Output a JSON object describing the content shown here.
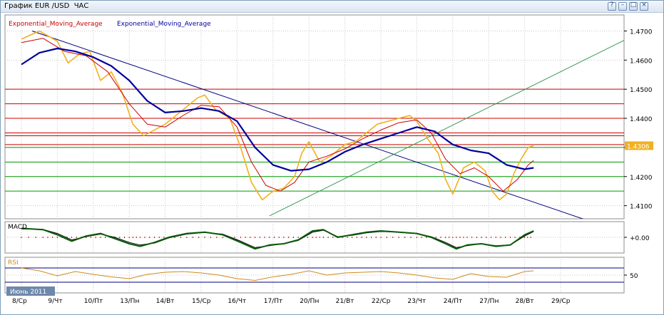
{
  "window": {
    "title": "График EUR /USD  ЧАС",
    "buttons": [
      {
        "name": "pin",
        "glyph": "?"
      },
      {
        "name": "minimize",
        "glyph": "–"
      },
      {
        "name": "maximize",
        "glyph": "□"
      },
      {
        "name": "close",
        "glyph": "×"
      }
    ]
  },
  "legend": {
    "ema_red_label": "Exponential_Moving_Average",
    "ema_blue_label": "Exponential_Moving_Average"
  },
  "month_label": "Июнь 2011",
  "colors": {
    "price": "#f0b020",
    "ema_fast": "#cc0000",
    "ema_slow": "#0000a0",
    "resistance": "#cc0000",
    "support": "#009900",
    "trend_down": "#000080",
    "trend_up": "#3c9a5a",
    "macd_main": "#0a5a0a",
    "macd_signal": "#000000",
    "rsi": "#d08a20",
    "price_tag_bg": "#f0b020"
  },
  "chart_data": [
    {
      "type": "line",
      "panel": "price",
      "x_labels": [
        "8/Ср",
        "9/Чт",
        "10/Пт",
        "13/Пн",
        "14/Вт",
        "15/Ср",
        "16/Чт",
        "17/Пт",
        "20/Пн",
        "21/Вт",
        "22/Ср",
        "23/Чт",
        "24/Пт",
        "27/Пн",
        "28/Вт",
        "29/Ср"
      ],
      "y_ticks": [
        1.41,
        1.42,
        1.43,
        1.44,
        1.45,
        1.46,
        1.47
      ],
      "y_tick_labels": [
        "1.4100",
        "1.4200",
        "",
        "1.4400",
        "1.4500",
        "1.4600",
        "1.4700"
      ],
      "ylim": [
        1.4055,
        1.4755
      ],
      "last_price_label": "1.4306",
      "last_price": 1.4306,
      "series": [
        {
          "name": "price",
          "points": [
            [
              0,
              1.4672
            ],
            [
              0.5,
              1.47
            ],
            [
              1,
              1.4665
            ],
            [
              1.3,
              1.459
            ],
            [
              1.6,
              1.462
            ],
            [
              1.9,
              1.463
            ],
            [
              2.2,
              1.453
            ],
            [
              2.5,
              1.456
            ],
            [
              2.8,
              1.449
            ],
            [
              3.1,
              1.438
            ],
            [
              3.4,
              1.434
            ],
            [
              3.7,
              1.436
            ],
            [
              4.0,
              1.438
            ],
            [
              4.3,
              1.441
            ],
            [
              4.6,
              1.444
            ],
            [
              4.9,
              1.447
            ],
            [
              5.1,
              1.448
            ],
            [
              5.4,
              1.443
            ],
            [
              5.8,
              1.44
            ],
            [
              6.1,
              1.43
            ],
            [
              6.4,
              1.418
            ],
            [
              6.7,
              1.412
            ],
            [
              7.0,
              1.415
            ],
            [
              7.3,
              1.416
            ],
            [
              7.6,
              1.42
            ],
            [
              7.8,
              1.428
            ],
            [
              8.0,
              1.432
            ],
            [
              8.3,
              1.425
            ],
            [
              8.6,
              1.427
            ],
            [
              9.0,
              1.431
            ],
            [
              9.3,
              1.432
            ],
            [
              9.6,
              1.435
            ],
            [
              9.9,
              1.438
            ],
            [
              10.2,
              1.439
            ],
            [
              10.5,
              1.44
            ],
            [
              10.8,
              1.441
            ],
            [
              11.0,
              1.439
            ],
            [
              11.3,
              1.433
            ],
            [
              11.6,
              1.428
            ],
            [
              11.8,
              1.419
            ],
            [
              12.0,
              1.414
            ],
            [
              12.3,
              1.423
            ],
            [
              12.6,
              1.425
            ],
            [
              12.9,
              1.422
            ],
            [
              13.1,
              1.415
            ],
            [
              13.3,
              1.412
            ],
            [
              13.5,
              1.414
            ],
            [
              13.7,
              1.421
            ],
            [
              13.9,
              1.426
            ],
            [
              14.1,
              1.43
            ],
            [
              14.25,
              1.4306
            ]
          ]
        },
        {
          "name": "ema_fast",
          "points": [
            [
              0,
              1.466
            ],
            [
              0.6,
              1.4675
            ],
            [
              1.2,
              1.463
            ],
            [
              1.8,
              1.4615
            ],
            [
              2.4,
              1.456
            ],
            [
              3.0,
              1.445
            ],
            [
              3.5,
              1.438
            ],
            [
              4.0,
              1.437
            ],
            [
              4.5,
              1.441
            ],
            [
              5.0,
              1.4445
            ],
            [
              5.5,
              1.444
            ],
            [
              6.0,
              1.437
            ],
            [
              6.4,
              1.425
            ],
            [
              6.8,
              1.417
            ],
            [
              7.2,
              1.415
            ],
            [
              7.6,
              1.418
            ],
            [
              8.0,
              1.425
            ],
            [
              8.5,
              1.427
            ],
            [
              9.0,
              1.4295
            ],
            [
              9.5,
              1.433
            ],
            [
              10.0,
              1.436
            ],
            [
              10.5,
              1.4385
            ],
            [
              11.0,
              1.4395
            ],
            [
              11.4,
              1.435
            ],
            [
              11.8,
              1.426
            ],
            [
              12.2,
              1.421
            ],
            [
              12.6,
              1.423
            ],
            [
              13.0,
              1.42
            ],
            [
              13.4,
              1.415
            ],
            [
              13.8,
              1.419
            ],
            [
              14.1,
              1.424
            ],
            [
              14.25,
              1.4255
            ]
          ]
        },
        {
          "name": "ema_slow",
          "points": [
            [
              0,
              1.4585
            ],
            [
              0.5,
              1.4625
            ],
            [
              1.0,
              1.464
            ],
            [
              1.5,
              1.463
            ],
            [
              2.0,
              1.461
            ],
            [
              2.5,
              1.458
            ],
            [
              3.0,
              1.453
            ],
            [
              3.5,
              1.446
            ],
            [
              4.0,
              1.442
            ],
            [
              4.5,
              1.4425
            ],
            [
              5.0,
              1.4435
            ],
            [
              5.5,
              1.4425
            ],
            [
              6.0,
              1.439
            ],
            [
              6.5,
              1.43
            ],
            [
              7.0,
              1.424
            ],
            [
              7.5,
              1.422
            ],
            [
              8.0,
              1.4225
            ],
            [
              8.5,
              1.425
            ],
            [
              9.0,
              1.4285
            ],
            [
              9.5,
              1.431
            ],
            [
              10.0,
              1.433
            ],
            [
              10.5,
              1.435
            ],
            [
              11.0,
              1.437
            ],
            [
              11.5,
              1.4355
            ],
            [
              12.0,
              1.431
            ],
            [
              12.5,
              1.429
            ],
            [
              13.0,
              1.428
            ],
            [
              13.5,
              1.424
            ],
            [
              14.0,
              1.4225
            ],
            [
              14.25,
              1.423
            ]
          ]
        }
      ],
      "resistance_levels": [
        1.45,
        1.445,
        1.44,
        1.435,
        1.434,
        1.431
      ],
      "support_levels": [
        1.43,
        1.425,
        1.42,
        1.415
      ],
      "trendlines": [
        {
          "name": "down",
          "from": [
            0.3,
            1.47
          ],
          "to": [
            16.8,
            1.4005
          ]
        },
        {
          "name": "up",
          "from": [
            6.9,
            1.4065
          ],
          "to": [
            16.8,
            1.467
          ]
        }
      ]
    },
    {
      "type": "line",
      "panel": "macd",
      "label": "MACD",
      "y_tick_labels": [
        "+0.00"
      ],
      "ylim": [
        -1,
        1
      ],
      "series": [
        {
          "name": "macd",
          "points": [
            [
              0,
              0.7
            ],
            [
              0.6,
              0.6
            ],
            [
              1.0,
              0.2
            ],
            [
              1.4,
              -0.3
            ],
            [
              1.8,
              0.1
            ],
            [
              2.2,
              0.3
            ],
            [
              2.6,
              -0.1
            ],
            [
              3.0,
              -0.5
            ],
            [
              3.3,
              -0.7
            ],
            [
              3.7,
              -0.4
            ],
            [
              4.1,
              0.0
            ],
            [
              4.6,
              0.3
            ],
            [
              5.1,
              0.4
            ],
            [
              5.6,
              0.2
            ],
            [
              6.1,
              -0.4
            ],
            [
              6.5,
              -0.9
            ],
            [
              6.9,
              -0.6
            ],
            [
              7.3,
              -0.5
            ],
            [
              7.7,
              -0.2
            ],
            [
              8.1,
              0.5
            ],
            [
              8.4,
              0.6
            ],
            [
              8.8,
              0.0
            ],
            [
              9.2,
              0.2
            ],
            [
              9.6,
              0.4
            ],
            [
              10.0,
              0.5
            ],
            [
              10.5,
              0.4
            ],
            [
              11.0,
              0.3
            ],
            [
              11.4,
              0.0
            ],
            [
              11.8,
              -0.5
            ],
            [
              12.1,
              -0.9
            ],
            [
              12.4,
              -0.6
            ],
            [
              12.8,
              -0.5
            ],
            [
              13.2,
              -0.7
            ],
            [
              13.6,
              -0.6
            ],
            [
              14.0,
              0.2
            ],
            [
              14.25,
              0.5
            ]
          ]
        },
        {
          "name": "signal",
          "points": [
            [
              0,
              0.65
            ],
            [
              0.6,
              0.62
            ],
            [
              1.0,
              0.3
            ],
            [
              1.4,
              -0.2
            ],
            [
              1.8,
              0.05
            ],
            [
              2.2,
              0.25
            ],
            [
              2.6,
              0.0
            ],
            [
              3.0,
              -0.4
            ],
            [
              3.3,
              -0.6
            ],
            [
              3.7,
              -0.45
            ],
            [
              4.1,
              -0.05
            ],
            [
              4.6,
              0.25
            ],
            [
              5.1,
              0.38
            ],
            [
              5.6,
              0.25
            ],
            [
              6.1,
              -0.3
            ],
            [
              6.5,
              -0.8
            ],
            [
              6.9,
              -0.65
            ],
            [
              7.3,
              -0.5
            ],
            [
              7.7,
              -0.25
            ],
            [
              8.1,
              0.4
            ],
            [
              8.4,
              0.55
            ],
            [
              8.8,
              0.05
            ],
            [
              9.2,
              0.15
            ],
            [
              9.6,
              0.35
            ],
            [
              10.0,
              0.45
            ],
            [
              10.5,
              0.4
            ],
            [
              11.0,
              0.3
            ],
            [
              11.4,
              0.05
            ],
            [
              11.8,
              -0.4
            ],
            [
              12.1,
              -0.8
            ],
            [
              12.4,
              -0.65
            ],
            [
              12.8,
              -0.5
            ],
            [
              13.2,
              -0.65
            ],
            [
              13.6,
              -0.6
            ],
            [
              14.0,
              0.1
            ],
            [
              14.25,
              0.45
            ]
          ]
        }
      ]
    },
    {
      "type": "line",
      "panel": "rsi",
      "label": "RSI",
      "y_tick_labels": [
        "50"
      ],
      "ylim": [
        0,
        100
      ],
      "series": [
        {
          "name": "rsi",
          "points": [
            [
              0,
              70
            ],
            [
              0.5,
              62
            ],
            [
              1.0,
              48
            ],
            [
              1.5,
              60
            ],
            [
              2.0,
              52
            ],
            [
              2.5,
              45
            ],
            [
              3.0,
              40
            ],
            [
              3.5,
              52
            ],
            [
              4.0,
              58
            ],
            [
              4.5,
              60
            ],
            [
              5.0,
              56
            ],
            [
              5.5,
              50
            ],
            [
              6.0,
              40
            ],
            [
              6.5,
              35
            ],
            [
              7.0,
              45
            ],
            [
              7.5,
              52
            ],
            [
              8.0,
              62
            ],
            [
              8.5,
              50
            ],
            [
              9.0,
              56
            ],
            [
              9.5,
              58
            ],
            [
              10.0,
              60
            ],
            [
              10.5,
              56
            ],
            [
              11.0,
              50
            ],
            [
              11.5,
              42
            ],
            [
              12.0,
              38
            ],
            [
              12.5,
              54
            ],
            [
              13.0,
              46
            ],
            [
              13.5,
              44
            ],
            [
              14.0,
              60
            ],
            [
              14.25,
              62
            ]
          ]
        }
      ]
    }
  ]
}
